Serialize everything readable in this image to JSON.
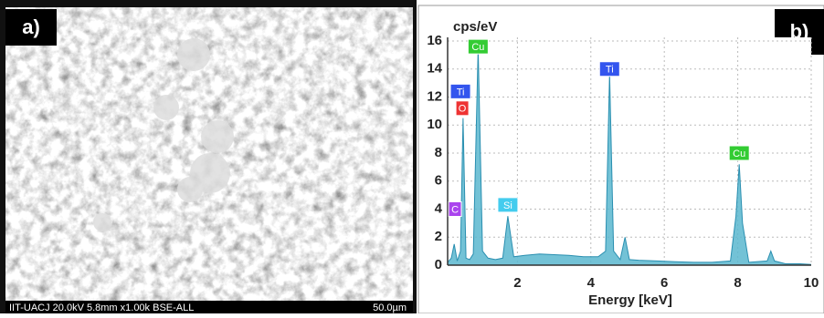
{
  "panel_a": {
    "label": "a)",
    "caption": "IIT-UACJ 20.0kV 5.8mm x1.00k BSE-ALL",
    "scale": "50.0µm"
  },
  "chart_data": {
    "type": "area",
    "panel_label": "b)",
    "ylabel": "cps/eV",
    "xlabel": "Energy [keV]",
    "x": [
      0.1,
      0.2,
      0.28,
      0.36,
      0.45,
      0.52,
      0.6,
      0.7,
      0.8,
      0.93,
      1.05,
      1.2,
      1.4,
      1.6,
      1.74,
      1.9,
      2.2,
      2.6,
      3.0,
      3.4,
      3.8,
      4.2,
      4.4,
      4.51,
      4.62,
      4.8,
      4.93,
      5.05,
      5.3,
      5.8,
      6.3,
      6.8,
      7.3,
      7.8,
      7.95,
      8.04,
      8.13,
      8.3,
      8.8,
      8.9,
      9.0,
      9.3,
      9.7,
      10
    ],
    "values": [
      0.2,
      0.5,
      1.5,
      0.3,
      1.0,
      10.5,
      0.5,
      0.4,
      0.8,
      15.5,
      1.0,
      0.5,
      0.4,
      0.5,
      3.5,
      0.6,
      0.7,
      0.8,
      0.75,
      0.7,
      0.6,
      0.6,
      1.0,
      13.7,
      1.0,
      0.4,
      2.0,
      0.4,
      0.35,
      0.3,
      0.25,
      0.2,
      0.2,
      0.3,
      3.5,
      7.2,
      3.0,
      0.2,
      0.3,
      1.0,
      0.3,
      0.1,
      0.1,
      0.05
    ],
    "color": "#5bb7cf",
    "xlim": [
      0.1,
      10
    ],
    "xticks": [
      2,
      4,
      6,
      8,
      10
    ],
    "ylim": [
      0,
      16
    ],
    "yticks": [
      0,
      2,
      4,
      6,
      8,
      10,
      12,
      14,
      16
    ],
    "grid": true,
    "annotations": [
      {
        "text": "Cu",
        "x": 0.93,
        "y": 15.6,
        "color": "#33cc33"
      },
      {
        "text": "Ti",
        "x": 0.45,
        "y": 12.4,
        "color": "#3355ee"
      },
      {
        "text": "O",
        "x": 0.5,
        "y": 11.2,
        "color": "#ee3333"
      },
      {
        "text": "C",
        "x": 0.3,
        "y": 4.0,
        "color": "#aa44ee"
      },
      {
        "text": "Si",
        "x": 1.74,
        "y": 4.3,
        "color": "#44ccee"
      },
      {
        "text": "Ti",
        "x": 4.51,
        "y": 14.0,
        "color": "#3355ee"
      },
      {
        "text": "Cu",
        "x": 8.04,
        "y": 8.0,
        "color": "#33cc33"
      }
    ]
  }
}
